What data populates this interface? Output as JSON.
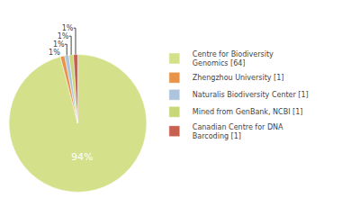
{
  "chart_data": {
    "type": "pie",
    "categories": [
      "Centre for Biodiversity\nGenomics [64]",
      "Zhengzhou University [1]",
      "Naturalis Biodiversity Center [1]",
      "Mined from GenBank, NCBI [1]",
      "Canadian Centre for DNA\nBarcoding [1]"
    ],
    "values": [
      94,
      1,
      1,
      1,
      1
    ],
    "value_labels": [
      "94%",
      "1%",
      "1%",
      "1%",
      "1%"
    ],
    "colors": [
      "#d4e08a",
      "#e8934a",
      "#adc4dc",
      "#c8d878",
      "#c86050"
    ],
    "data_labels": true,
    "legend": "right"
  }
}
